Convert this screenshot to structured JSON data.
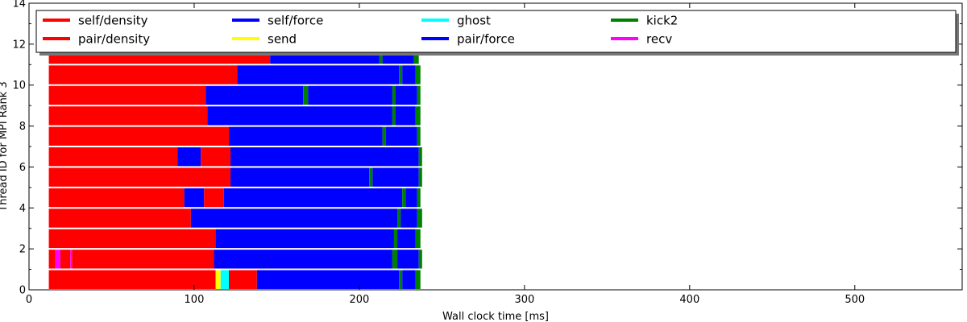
{
  "chart_data": {
    "type": "bar",
    "orientation": "horizontal-gantt",
    "title": "",
    "xlabel": "Wall clock time [ms]",
    "ylabel": "Thread ID for MPI Rank 3",
    "xlim": [
      0,
      565
    ],
    "ylim": [
      0,
      14
    ],
    "xticks": [
      0,
      100,
      200,
      300,
      400,
      500
    ],
    "yticks": [
      0,
      2,
      4,
      6,
      8,
      10,
      12,
      14
    ],
    "grid": false,
    "legend_placement": "top",
    "legend": [
      {
        "name": "self/density",
        "color": "#ff0000"
      },
      {
        "name": "pair/density",
        "color": "#ff0000"
      },
      {
        "name": "self/force",
        "color": "#0000ff"
      },
      {
        "name": "send",
        "color": "#ffff00"
      },
      {
        "name": "ghost",
        "color": "#00ffff"
      },
      {
        "name": "pair/force",
        "color": "#0000ff"
      },
      {
        "name": "kick2",
        "color": "#008000"
      },
      {
        "name": "recv",
        "color": "#ff00ff"
      }
    ],
    "threads": [
      {
        "id": 0,
        "segments": [
          {
            "task": "density",
            "start": 12,
            "end": 113
          },
          {
            "task": "send",
            "start": 113,
            "end": 116
          },
          {
            "task": "ghost",
            "start": 116,
            "end": 121
          },
          {
            "task": "density",
            "start": 121,
            "end": 138
          },
          {
            "task": "force",
            "start": 138,
            "end": 224
          },
          {
            "task": "kick2",
            "start": 224,
            "end": 226
          },
          {
            "task": "force",
            "start": 226,
            "end": 234
          },
          {
            "task": "kick2",
            "start": 234,
            "end": 237
          }
        ]
      },
      {
        "id": 1,
        "segments": [
          {
            "task": "density",
            "start": 12,
            "end": 16
          },
          {
            "task": "recv",
            "start": 16,
            "end": 19
          },
          {
            "task": "density",
            "start": 19,
            "end": 25
          },
          {
            "task": "recv",
            "start": 25,
            "end": 26
          },
          {
            "task": "density",
            "start": 26,
            "end": 112
          },
          {
            "task": "force",
            "start": 112,
            "end": 220
          },
          {
            "task": "kick2",
            "start": 220,
            "end": 223
          },
          {
            "task": "force",
            "start": 223,
            "end": 236
          },
          {
            "task": "kick2",
            "start": 236,
            "end": 238
          }
        ]
      },
      {
        "id": 2,
        "segments": [
          {
            "task": "density",
            "start": 12,
            "end": 113
          },
          {
            "task": "force",
            "start": 113,
            "end": 221
          },
          {
            "task": "kick2",
            "start": 221,
            "end": 223
          },
          {
            "task": "force",
            "start": 223,
            "end": 234
          },
          {
            "task": "kick2",
            "start": 234,
            "end": 237
          }
        ]
      },
      {
        "id": 3,
        "segments": [
          {
            "task": "density",
            "start": 12,
            "end": 98
          },
          {
            "task": "force",
            "start": 98,
            "end": 223
          },
          {
            "task": "kick2",
            "start": 223,
            "end": 225
          },
          {
            "task": "force",
            "start": 225,
            "end": 235
          },
          {
            "task": "kick2",
            "start": 235,
            "end": 238
          }
        ]
      },
      {
        "id": 4,
        "segments": [
          {
            "task": "density",
            "start": 12,
            "end": 94
          },
          {
            "task": "force",
            "start": 94,
            "end": 106
          },
          {
            "task": "density",
            "start": 106,
            "end": 118
          },
          {
            "task": "force",
            "start": 118,
            "end": 226
          },
          {
            "task": "kick2",
            "start": 226,
            "end": 228
          },
          {
            "task": "force",
            "start": 228,
            "end": 235
          },
          {
            "task": "kick2",
            "start": 235,
            "end": 237
          }
        ]
      },
      {
        "id": 5,
        "segments": [
          {
            "task": "density",
            "start": 12,
            "end": 122
          },
          {
            "task": "force",
            "start": 122,
            "end": 206
          },
          {
            "task": "kick2",
            "start": 206,
            "end": 208
          },
          {
            "task": "force",
            "start": 208,
            "end": 236
          },
          {
            "task": "kick2",
            "start": 236,
            "end": 238
          }
        ]
      },
      {
        "id": 6,
        "segments": [
          {
            "task": "density",
            "start": 12,
            "end": 90
          },
          {
            "task": "force",
            "start": 90,
            "end": 104
          },
          {
            "task": "density",
            "start": 104,
            "end": 122
          },
          {
            "task": "force",
            "start": 122,
            "end": 236
          },
          {
            "task": "kick2",
            "start": 236,
            "end": 238
          }
        ]
      },
      {
        "id": 7,
        "segments": [
          {
            "task": "density",
            "start": 12,
            "end": 121
          },
          {
            "task": "force",
            "start": 121,
            "end": 214
          },
          {
            "task": "kick2",
            "start": 214,
            "end": 216
          },
          {
            "task": "force",
            "start": 216,
            "end": 235
          },
          {
            "task": "kick2",
            "start": 235,
            "end": 237
          }
        ]
      },
      {
        "id": 8,
        "segments": [
          {
            "task": "density",
            "start": 12,
            "end": 108
          },
          {
            "task": "force",
            "start": 108,
            "end": 220
          },
          {
            "task": "kick2",
            "start": 220,
            "end": 222
          },
          {
            "task": "force",
            "start": 222,
            "end": 234
          },
          {
            "task": "kick2",
            "start": 234,
            "end": 237
          }
        ]
      },
      {
        "id": 9,
        "segments": [
          {
            "task": "density",
            "start": 12,
            "end": 107
          },
          {
            "task": "force",
            "start": 107,
            "end": 166
          },
          {
            "task": "kick2",
            "start": 166,
            "end": 169
          },
          {
            "task": "force",
            "start": 169,
            "end": 220
          },
          {
            "task": "kick2",
            "start": 220,
            "end": 222
          },
          {
            "task": "force",
            "start": 222,
            "end": 235
          },
          {
            "task": "kick2",
            "start": 235,
            "end": 237
          }
        ]
      },
      {
        "id": 10,
        "segments": [
          {
            "task": "density",
            "start": 12,
            "end": 126
          },
          {
            "task": "force",
            "start": 126,
            "end": 224
          },
          {
            "task": "kick2",
            "start": 224,
            "end": 226
          },
          {
            "task": "force",
            "start": 226,
            "end": 234
          },
          {
            "task": "kick2",
            "start": 234,
            "end": 237
          }
        ]
      },
      {
        "id": 11,
        "segments": [
          {
            "task": "density",
            "start": 12,
            "end": 146
          },
          {
            "task": "force",
            "start": 146,
            "end": 212
          },
          {
            "task": "kick2",
            "start": 212,
            "end": 214
          },
          {
            "task": "force",
            "start": 214,
            "end": 233
          },
          {
            "task": "kick2",
            "start": 233,
            "end": 236
          }
        ]
      }
    ]
  }
}
